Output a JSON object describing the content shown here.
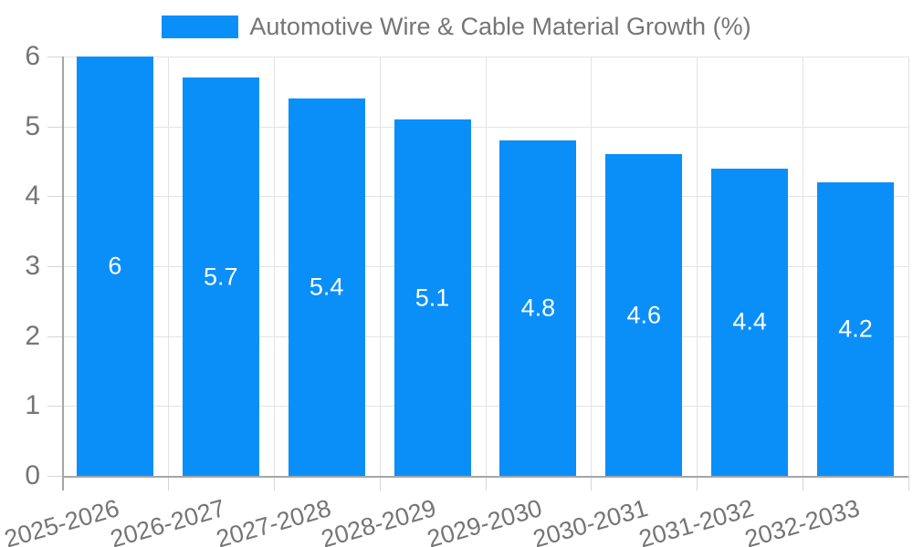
{
  "legend": {
    "label": "Automotive Wire & Cable Material Growth (%)"
  },
  "colors": {
    "bar": "#0a8ff9",
    "grid": "#e3e3e3",
    "axis": "#a6a6a6",
    "tick": "#d6d6d6",
    "axis_text": "#757575",
    "bar_label_text": "#ffffff",
    "background": "#ffffff"
  },
  "chart_data": {
    "type": "bar",
    "title": "Automotive Wire & Cable Material Growth (%)",
    "categories": [
      "2025-2026",
      "2026-2027",
      "2027-2028",
      "2028-2029",
      "2029-2030",
      "2030-2031",
      "2031-2032",
      "2032-2033"
    ],
    "values": [
      6,
      5.7,
      5.4,
      5.1,
      4.8,
      4.6,
      4.4,
      4.2
    ],
    "bar_labels": [
      "6",
      "5.7",
      "5.4",
      "5.1",
      "4.8",
      "4.6",
      "4.4",
      "4.2"
    ],
    "xlabel": "",
    "ylabel": "",
    "ylim": [
      0,
      6
    ],
    "yticks": [
      0,
      1,
      2,
      3,
      4,
      5,
      6
    ],
    "grid": true,
    "legend_position": "top-center",
    "value_label_position": "inside-center"
  }
}
